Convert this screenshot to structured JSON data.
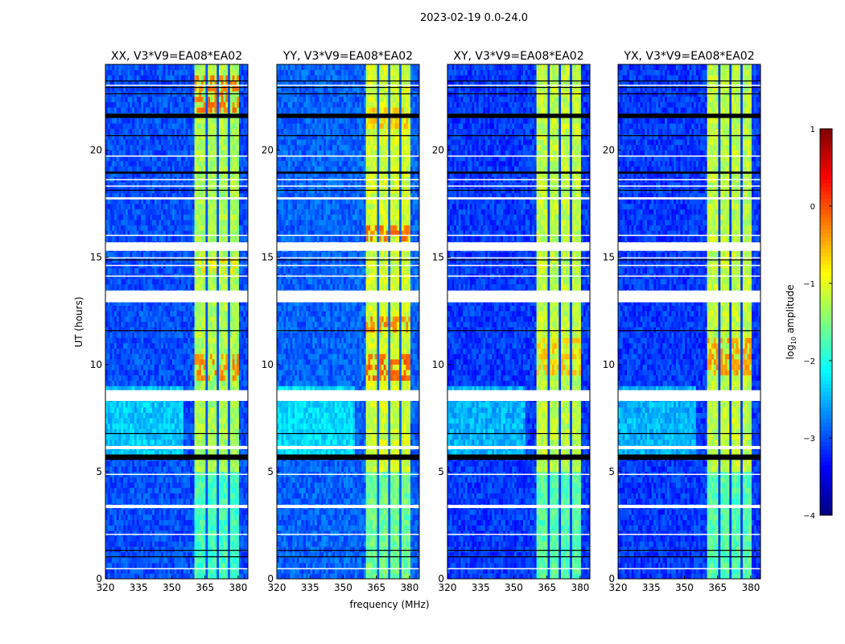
{
  "chart_data": {
    "type": "heatmap",
    "title": "2023-02-19 0.0-24.0",
    "xlabel": "frequency (MHz)",
    "ylabel": "UT (hours)",
    "xlim": [
      320,
      384.4
    ],
    "ylim": [
      0,
      24
    ],
    "xticks": [
      "320",
      "335",
      "350",
      "365",
      "380"
    ],
    "xtick_values": [
      320,
      335,
      350,
      365,
      380
    ],
    "yticks": [
      "0",
      "5",
      "10",
      "15",
      "20"
    ],
    "ytick_values": [
      0,
      5,
      10,
      15,
      20
    ],
    "colorbar": {
      "label": "log10 amplitude",
      "label_main": "log",
      "label_sub": "10",
      "label_rest": " amplitude",
      "range": [
        -4,
        1
      ],
      "ticks": [
        "−4",
        "−3",
        "−2",
        "−1",
        "0",
        "1"
      ],
      "tick_values": [
        -4,
        -3,
        -2,
        -1,
        0,
        1
      ],
      "colormap": "jet"
    },
    "panels": [
      {
        "title": "XX, V3*V9=EA08*EA02",
        "background_level": -3.0,
        "band_level": -1.3,
        "hot_spots": [
          {
            "t": [
              21.8,
              23.5
            ],
            "level": -0.2
          },
          {
            "t": [
              9.3,
              10.5
            ],
            "level": -0.3
          },
          {
            "t": [
              14.2,
              15.0
            ],
            "level": -0.8
          }
        ]
      },
      {
        "title": "YY, V3*V9=EA08*EA02",
        "background_level": -2.9,
        "band_level": -1.1,
        "hot_spots": [
          {
            "t": [
              15.8,
              16.4
            ],
            "level": -0.2
          },
          {
            "t": [
              11.5,
              12.3
            ],
            "level": -0.3
          },
          {
            "t": [
              9.3,
              10.5
            ],
            "level": -0.1
          },
          {
            "t": [
              21.0,
              22.0
            ],
            "level": -0.6
          }
        ]
      },
      {
        "title": "XY, V3*V9=EA08*EA02",
        "background_level": -3.1,
        "band_level": -1.2,
        "hot_spots": [
          {
            "t": [
              9.5,
              11.2
            ],
            "level": -0.6
          }
        ]
      },
      {
        "title": "YX, V3*V9=EA08*EA02",
        "background_level": -3.1,
        "band_level": -1.2,
        "hot_spots": [
          {
            "t": [
              9.5,
              11.2
            ],
            "level": -0.4
          }
        ]
      }
    ],
    "band": {
      "freq": [
        360.7,
        380.4
      ],
      "dark_channels": [
        365.8,
        370.5,
        375.6
      ]
    },
    "flagged_times_white": [
      [
        23.0,
        23.05
      ],
      [
        19.7,
        19.75
      ],
      [
        18.6,
        18.65
      ],
      [
        18.3,
        18.35
      ],
      [
        17.7,
        17.8
      ],
      [
        16.0,
        16.05
      ],
      [
        15.3,
        15.7
      ],
      [
        14.95,
        15.0
      ],
      [
        14.6,
        14.65
      ],
      [
        14.1,
        14.15
      ],
      [
        12.9,
        13.45
      ],
      [
        8.3,
        8.8
      ],
      [
        6.05,
        6.2
      ],
      [
        4.85,
        4.9
      ],
      [
        3.3,
        3.45
      ],
      [
        2.05,
        2.1
      ],
      [
        0.45,
        0.5
      ]
    ],
    "flagged_times_black": [
      [
        23.2,
        23.25
      ],
      [
        22.9,
        22.95
      ],
      [
        22.6,
        22.65
      ],
      [
        21.3,
        21.7
      ],
      [
        20.6,
        20.7
      ],
      [
        18.8,
        19.0
      ],
      [
        18.1,
        18.15
      ],
      [
        14.85,
        14.9
      ],
      [
        11.55,
        11.6
      ],
      [
        6.75,
        6.8
      ],
      [
        5.3,
        5.8
      ],
      [
        1.3,
        1.35
      ],
      [
        1.0,
        1.05
      ]
    ]
  }
}
